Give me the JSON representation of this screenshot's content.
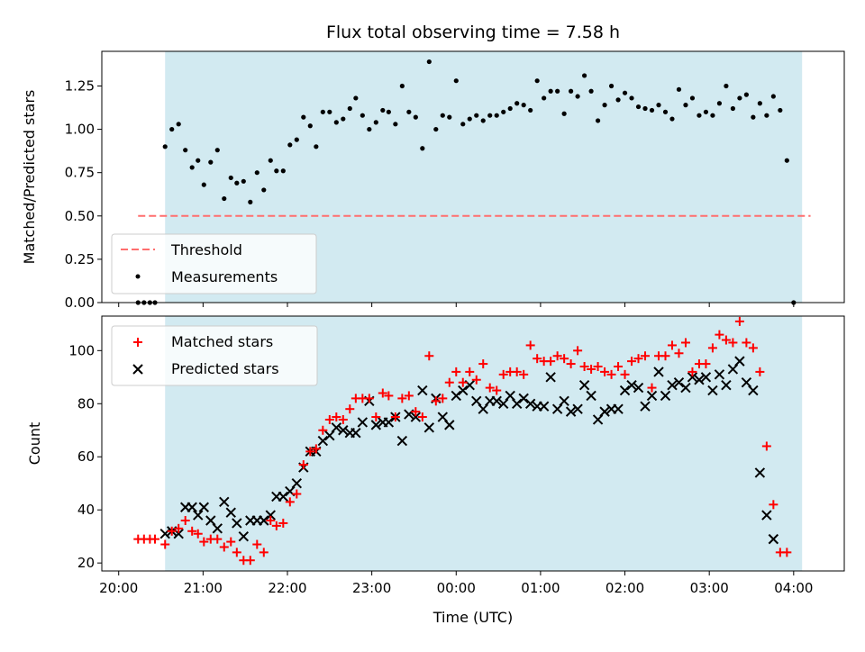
{
  "chart_data": {
    "title": "Flux total observing time = 7.58 h",
    "x_unit": "hours since 20:00 UTC",
    "xlabel": "Time (UTC)",
    "x_ticks": [
      {
        "value": 0,
        "label": "20:00"
      },
      {
        "value": 1,
        "label": "21:00"
      },
      {
        "value": 2,
        "label": "22:00"
      },
      {
        "value": 3,
        "label": "23:00"
      },
      {
        "value": 4,
        "label": "00:00"
      },
      {
        "value": 5,
        "label": "01:00"
      },
      {
        "value": 6,
        "label": "02:00"
      },
      {
        "value": 7,
        "label": "03:00"
      },
      {
        "value": 8,
        "label": "04:00"
      }
    ],
    "xlim": [
      -0.2,
      8.6
    ],
    "observing_window": [
      0.55,
      8.1
    ],
    "top": {
      "type": "scatter",
      "ylabel": "Matched/Predicted stars",
      "ylim": [
        0,
        1.45
      ],
      "y_ticks": [
        "0.00",
        "0.25",
        "0.50",
        "0.75",
        "1.00",
        "1.25"
      ],
      "threshold": {
        "name": "Threshold",
        "value": 0.5,
        "x_range": [
          0.23,
          8.2
        ],
        "color": "#ff6e6e"
      },
      "measurements_name": "Measurements",
      "measurements": [
        [
          0.23,
          0
        ],
        [
          0.3,
          0
        ],
        [
          0.37,
          0
        ],
        [
          0.43,
          0
        ],
        [
          0.55,
          0.9
        ],
        [
          0.63,
          1.0
        ],
        [
          0.71,
          1.03
        ],
        [
          0.79,
          0.88
        ],
        [
          0.87,
          0.78
        ],
        [
          0.94,
          0.82
        ],
        [
          1.01,
          0.68
        ],
        [
          1.09,
          0.81
        ],
        [
          1.17,
          0.88
        ],
        [
          1.25,
          0.6
        ],
        [
          1.33,
          0.72
        ],
        [
          1.4,
          0.69
        ],
        [
          1.48,
          0.7
        ],
        [
          1.56,
          0.58
        ],
        [
          1.64,
          0.75
        ],
        [
          1.72,
          0.65
        ],
        [
          1.8,
          0.82
        ],
        [
          1.87,
          0.76
        ],
        [
          1.95,
          0.76
        ],
        [
          2.03,
          0.91
        ],
        [
          2.11,
          0.94
        ],
        [
          2.19,
          1.07
        ],
        [
          2.27,
          1.02
        ],
        [
          2.34,
          0.9
        ],
        [
          2.42,
          1.1
        ],
        [
          2.5,
          1.1
        ],
        [
          2.58,
          1.04
        ],
        [
          2.66,
          1.06
        ],
        [
          2.74,
          1.12
        ],
        [
          2.81,
          1.18
        ],
        [
          2.89,
          1.08
        ],
        [
          2.97,
          1.0
        ],
        [
          3.05,
          1.04
        ],
        [
          3.13,
          1.11
        ],
        [
          3.2,
          1.1
        ],
        [
          3.28,
          1.03
        ],
        [
          3.36,
          1.25
        ],
        [
          3.44,
          1.1
        ],
        [
          3.52,
          1.07
        ],
        [
          3.6,
          0.89
        ],
        [
          3.68,
          1.39
        ],
        [
          3.76,
          1.0
        ],
        [
          3.84,
          1.08
        ],
        [
          3.92,
          1.07
        ],
        [
          4.0,
          1.28
        ],
        [
          4.08,
          1.03
        ],
        [
          4.16,
          1.06
        ],
        [
          4.24,
          1.08
        ],
        [
          4.32,
          1.05
        ],
        [
          4.4,
          1.08
        ],
        [
          4.48,
          1.08
        ],
        [
          4.56,
          1.1
        ],
        [
          4.64,
          1.12
        ],
        [
          4.72,
          1.15
        ],
        [
          4.8,
          1.14
        ],
        [
          4.88,
          1.11
        ],
        [
          4.96,
          1.28
        ],
        [
          5.04,
          1.18
        ],
        [
          5.12,
          1.22
        ],
        [
          5.2,
          1.22
        ],
        [
          5.28,
          1.09
        ],
        [
          5.36,
          1.22
        ],
        [
          5.44,
          1.19
        ],
        [
          5.52,
          1.31
        ],
        [
          5.6,
          1.22
        ],
        [
          5.68,
          1.05
        ],
        [
          5.76,
          1.14
        ],
        [
          5.84,
          1.25
        ],
        [
          5.92,
          1.17
        ],
        [
          6.0,
          1.21
        ],
        [
          6.08,
          1.18
        ],
        [
          6.16,
          1.13
        ],
        [
          6.24,
          1.12
        ],
        [
          6.32,
          1.11
        ],
        [
          6.4,
          1.14
        ],
        [
          6.48,
          1.1
        ],
        [
          6.56,
          1.06
        ],
        [
          6.64,
          1.23
        ],
        [
          6.72,
          1.14
        ],
        [
          6.8,
          1.18
        ],
        [
          6.88,
          1.08
        ],
        [
          6.96,
          1.1
        ],
        [
          7.04,
          1.08
        ],
        [
          7.12,
          1.15
        ],
        [
          7.2,
          1.25
        ],
        [
          7.28,
          1.12
        ],
        [
          7.36,
          1.18
        ],
        [
          7.44,
          1.2
        ],
        [
          7.52,
          1.07
        ],
        [
          7.6,
          1.15
        ],
        [
          7.68,
          1.08
        ],
        [
          7.76,
          1.19
        ],
        [
          7.84,
          1.11
        ],
        [
          7.92,
          0.82
        ],
        [
          8.0,
          0
        ]
      ]
    },
    "bottom": {
      "type": "scatter",
      "ylabel": "Count",
      "ylim": [
        17,
        113
      ],
      "y_ticks": [
        "20",
        "40",
        "60",
        "80",
        "100"
      ],
      "series": [
        {
          "name": "Matched stars",
          "marker": "+",
          "color": "#ff0000",
          "points": [
            [
              0.23,
              29
            ],
            [
              0.3,
              29
            ],
            [
              0.37,
              29
            ],
            [
              0.43,
              29
            ],
            [
              0.55,
              27
            ],
            [
              0.63,
              32
            ],
            [
              0.71,
              33
            ],
            [
              0.79,
              36
            ],
            [
              0.87,
              32
            ],
            [
              0.94,
              31
            ],
            [
              1.01,
              28
            ],
            [
              1.09,
              29
            ],
            [
              1.17,
              29
            ],
            [
              1.25,
              26
            ],
            [
              1.33,
              28
            ],
            [
              1.4,
              24
            ],
            [
              1.48,
              21
            ],
            [
              1.56,
              21
            ],
            [
              1.64,
              27
            ],
            [
              1.72,
              24
            ],
            [
              1.8,
              36
            ],
            [
              1.87,
              34
            ],
            [
              1.95,
              35
            ],
            [
              2.03,
              43
            ],
            [
              2.11,
              46
            ],
            [
              2.19,
              57
            ],
            [
              2.27,
              62
            ],
            [
              2.34,
              63
            ],
            [
              2.42,
              70
            ],
            [
              2.5,
              74
            ],
            [
              2.58,
              75
            ],
            [
              2.66,
              74
            ],
            [
              2.74,
              78
            ],
            [
              2.81,
              82
            ],
            [
              2.89,
              82
            ],
            [
              2.97,
              82
            ],
            [
              3.05,
              75
            ],
            [
              3.13,
              84
            ],
            [
              3.2,
              83
            ],
            [
              3.28,
              75
            ],
            [
              3.36,
              82
            ],
            [
              3.44,
              83
            ],
            [
              3.52,
              77
            ],
            [
              3.6,
              75
            ],
            [
              3.68,
              98
            ],
            [
              3.76,
              81
            ],
            [
              3.84,
              82
            ],
            [
              3.92,
              88
            ],
            [
              4.0,
              92
            ],
            [
              4.08,
              88
            ],
            [
              4.16,
              92
            ],
            [
              4.24,
              89
            ],
            [
              4.32,
              95
            ],
            [
              4.4,
              86
            ],
            [
              4.48,
              85
            ],
            [
              4.56,
              91
            ],
            [
              4.64,
              92
            ],
            [
              4.72,
              92
            ],
            [
              4.8,
              91
            ],
            [
              4.88,
              102
            ],
            [
              4.96,
              97
            ],
            [
              5.04,
              96
            ],
            [
              5.12,
              96
            ],
            [
              5.2,
              98
            ],
            [
              5.28,
              97
            ],
            [
              5.36,
              95
            ],
            [
              5.44,
              100
            ],
            [
              5.52,
              94
            ],
            [
              5.6,
              93
            ],
            [
              5.68,
              94
            ],
            [
              5.76,
              92
            ],
            [
              5.84,
              91
            ],
            [
              5.92,
              94
            ],
            [
              6.0,
              91
            ],
            [
              6.08,
              96
            ],
            [
              6.16,
              97
            ],
            [
              6.24,
              98
            ],
            [
              6.32,
              86
            ],
            [
              6.4,
              98
            ],
            [
              6.48,
              98
            ],
            [
              6.56,
              102
            ],
            [
              6.64,
              99
            ],
            [
              6.72,
              103
            ],
            [
              6.8,
              92
            ],
            [
              6.88,
              95
            ],
            [
              6.96,
              95
            ],
            [
              7.04,
              101
            ],
            [
              7.12,
              106
            ],
            [
              7.2,
              104
            ],
            [
              7.28,
              103
            ],
            [
              7.36,
              111
            ],
            [
              7.44,
              103
            ],
            [
              7.52,
              101
            ],
            [
              7.6,
              92
            ],
            [
              7.68,
              64
            ],
            [
              7.76,
              42
            ],
            [
              7.84,
              24
            ],
            [
              7.92,
              24
            ]
          ]
        },
        {
          "name": "Predicted stars",
          "marker": "x",
          "color": "#000000",
          "points": [
            [
              0.55,
              31
            ],
            [
              0.63,
              32
            ],
            [
              0.71,
              31
            ],
            [
              0.79,
              41
            ],
            [
              0.87,
              41
            ],
            [
              0.94,
              38
            ],
            [
              1.01,
              41
            ],
            [
              1.09,
              36
            ],
            [
              1.17,
              33
            ],
            [
              1.25,
              43
            ],
            [
              1.33,
              39
            ],
            [
              1.4,
              35
            ],
            [
              1.48,
              30
            ],
            [
              1.56,
              36
            ],
            [
              1.64,
              36
            ],
            [
              1.72,
              36
            ],
            [
              1.8,
              38
            ],
            [
              1.87,
              45
            ],
            [
              1.95,
              45
            ],
            [
              2.03,
              47
            ],
            [
              2.11,
              50
            ],
            [
              2.19,
              56
            ],
            [
              2.27,
              62
            ],
            [
              2.34,
              62
            ],
            [
              2.42,
              66
            ],
            [
              2.5,
              68
            ],
            [
              2.58,
              71
            ],
            [
              2.66,
              70
            ],
            [
              2.74,
              69
            ],
            [
              2.81,
              69
            ],
            [
              2.89,
              73
            ],
            [
              2.97,
              81
            ],
            [
              3.05,
              72
            ],
            [
              3.13,
              73
            ],
            [
              3.2,
              73
            ],
            [
              3.28,
              75
            ],
            [
              3.36,
              66
            ],
            [
              3.44,
              76
            ],
            [
              3.52,
              75
            ],
            [
              3.6,
              85
            ],
            [
              3.68,
              71
            ],
            [
              3.76,
              82
            ],
            [
              3.84,
              75
            ],
            [
              3.92,
              72
            ],
            [
              4.0,
              83
            ],
            [
              4.08,
              85
            ],
            [
              4.16,
              87
            ],
            [
              4.24,
              81
            ],
            [
              4.32,
              78
            ],
            [
              4.4,
              81
            ],
            [
              4.48,
              81
            ],
            [
              4.56,
              80
            ],
            [
              4.64,
              83
            ],
            [
              4.72,
              80
            ],
            [
              4.8,
              82
            ],
            [
              4.88,
              80
            ],
            [
              4.96,
              79
            ],
            [
              5.04,
              79
            ],
            [
              5.12,
              90
            ],
            [
              5.2,
              78
            ],
            [
              5.28,
              81
            ],
            [
              5.36,
              77
            ],
            [
              5.44,
              78
            ],
            [
              5.52,
              87
            ],
            [
              5.6,
              83
            ],
            [
              5.68,
              74
            ],
            [
              5.76,
              77
            ],
            [
              5.84,
              78
            ],
            [
              5.92,
              78
            ],
            [
              6.0,
              85
            ],
            [
              6.08,
              87
            ],
            [
              6.16,
              86
            ],
            [
              6.24,
              79
            ],
            [
              6.32,
              83
            ],
            [
              6.4,
              92
            ],
            [
              6.48,
              83
            ],
            [
              6.56,
              87
            ],
            [
              6.64,
              88
            ],
            [
              6.72,
              86
            ],
            [
              6.8,
              90
            ],
            [
              6.88,
              89
            ],
            [
              6.96,
              90
            ],
            [
              7.04,
              85
            ],
            [
              7.12,
              91
            ],
            [
              7.2,
              87
            ],
            [
              7.28,
              93
            ],
            [
              7.36,
              96
            ],
            [
              7.44,
              88
            ],
            [
              7.52,
              85
            ],
            [
              7.6,
              54
            ],
            [
              7.68,
              38
            ],
            [
              7.76,
              29
            ]
          ]
        }
      ]
    },
    "window_color": "#add8e6",
    "legend_top_placement": "lower-left",
    "legend_bottom_placement": "upper-left",
    "grid": false
  }
}
